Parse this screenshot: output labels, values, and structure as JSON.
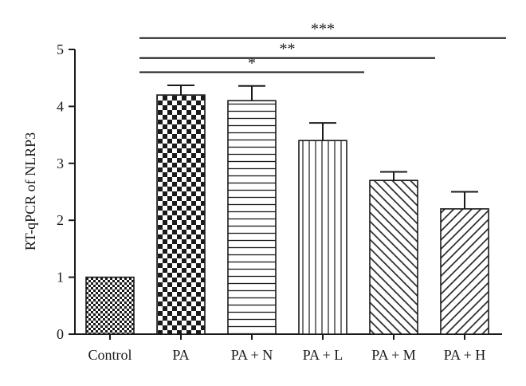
{
  "chart_data": {
    "type": "bar",
    "title": "",
    "xlabel": "",
    "ylabel": "RT-qPCR of NLRP3",
    "ylim": [
      0,
      5
    ],
    "yticks": [
      0,
      1,
      2,
      3,
      4,
      5
    ],
    "categories": [
      "Control",
      "PA",
      "PA + N",
      "PA + L",
      "PA + M",
      "PA + H"
    ],
    "values": [
      1.0,
      4.2,
      4.1,
      3.4,
      2.7,
      2.2
    ],
    "errors": [
      0.0,
      0.17,
      0.26,
      0.31,
      0.15,
      0.3
    ],
    "patterns": [
      "checker-small",
      "checker-large",
      "horizontal-lines",
      "vertical-lines",
      "diagonal-up",
      "diagonal-down"
    ],
    "significance": [
      {
        "from": "PA",
        "to": "PA + L",
        "label": "*",
        "y": 4.6
      },
      {
        "from": "PA",
        "to": "PA + M",
        "label": "**",
        "y": 4.85
      },
      {
        "from": "PA",
        "to": "PA + H",
        "label": "***",
        "y": 5.2
      }
    ],
    "grid": false,
    "colors": {
      "ink": "#1a1a1a",
      "fill": "#ffffff"
    }
  }
}
